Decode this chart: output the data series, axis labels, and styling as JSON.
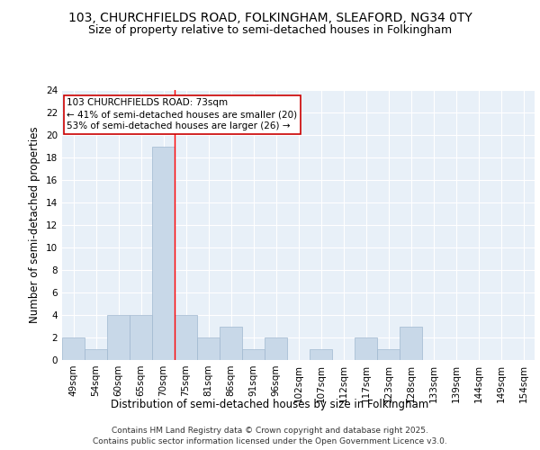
{
  "title1": "103, CHURCHFIELDS ROAD, FOLKINGHAM, SLEAFORD, NG34 0TY",
  "title2": "Size of property relative to semi-detached houses in Folkingham",
  "xlabel": "Distribution of semi-detached houses by size in Folkingham",
  "ylabel": "Number of semi-detached properties",
  "categories": [
    "49sqm",
    "54sqm",
    "60sqm",
    "65sqm",
    "70sqm",
    "75sqm",
    "81sqm",
    "86sqm",
    "91sqm",
    "96sqm",
    "102sqm",
    "107sqm",
    "112sqm",
    "117sqm",
    "123sqm",
    "128sqm",
    "133sqm",
    "139sqm",
    "144sqm",
    "149sqm",
    "154sqm"
  ],
  "values": [
    2,
    1,
    4,
    4,
    19,
    4,
    2,
    3,
    1,
    2,
    0,
    1,
    0,
    2,
    1,
    3,
    0,
    0,
    0,
    0,
    0
  ],
  "bar_color": "#c8d8e8",
  "bar_edge_color": "#a0b8d0",
  "red_line_x": 4,
  "ylim": [
    0,
    24
  ],
  "yticks": [
    0,
    2,
    4,
    6,
    8,
    10,
    12,
    14,
    16,
    18,
    20,
    22,
    24
  ],
  "annotation_text": "103 CHURCHFIELDS ROAD: 73sqm\n← 41% of semi-detached houses are smaller (20)\n53% of semi-detached houses are larger (26) →",
  "annotation_box_color": "#ffffff",
  "annotation_box_edge": "#cc0000",
  "bg_color": "#e8f0f8",
  "footer": "Contains HM Land Registry data © Crown copyright and database right 2025.\nContains public sector information licensed under the Open Government Licence v3.0.",
  "title_fontsize": 10,
  "subtitle_fontsize": 9,
  "axis_label_fontsize": 8.5,
  "tick_fontsize": 7.5,
  "annotation_fontsize": 7.5,
  "footer_fontsize": 6.5
}
